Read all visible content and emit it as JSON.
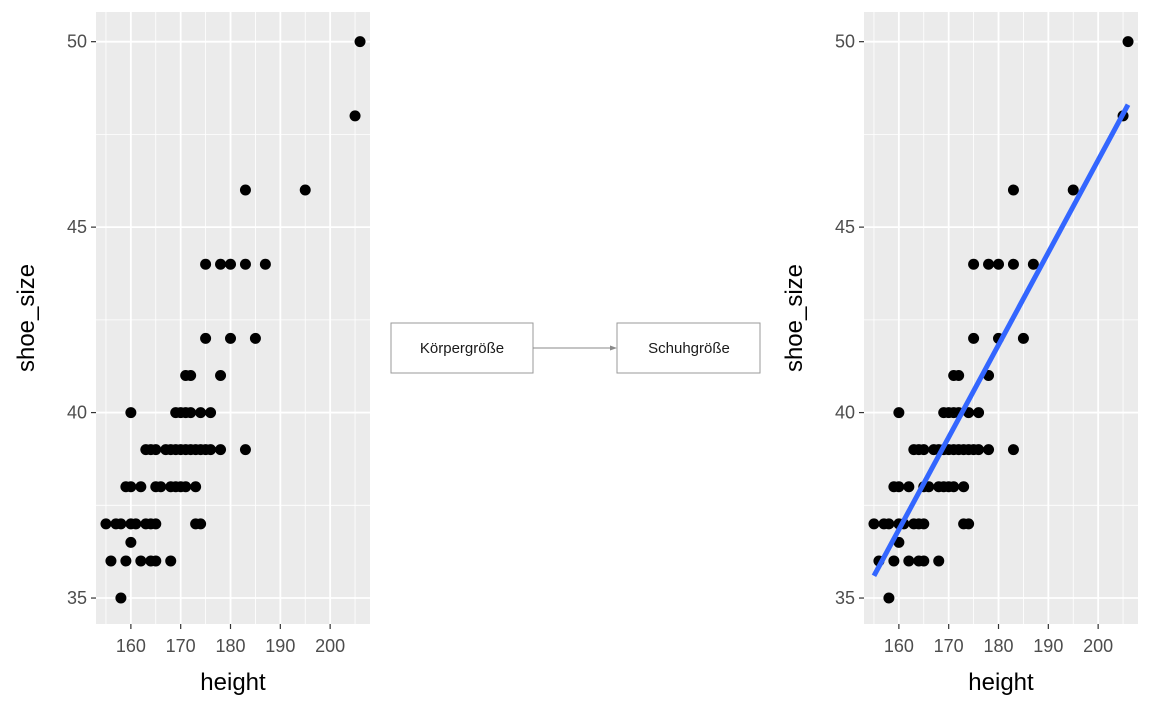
{
  "chart_data": [
    {
      "type": "scatter",
      "title": "",
      "xlabel": "height",
      "ylabel": "shoe_size",
      "xlim": [
        153,
        208
      ],
      "ylim": [
        34.3,
        50.8
      ],
      "xticks": [
        160,
        170,
        180,
        190,
        200
      ],
      "yticks": [
        35,
        40,
        45,
        50
      ],
      "grid": true,
      "points": [
        [
          155,
          37
        ],
        [
          156,
          36
        ],
        [
          157,
          37
        ],
        [
          158,
          37
        ],
        [
          158,
          35
        ],
        [
          159,
          38
        ],
        [
          159,
          36
        ],
        [
          160,
          38
        ],
        [
          160,
          37
        ],
        [
          160,
          36.5
        ],
        [
          160,
          40
        ],
        [
          161,
          37
        ],
        [
          162,
          38
        ],
        [
          162,
          36
        ],
        [
          163,
          39
        ],
        [
          163,
          37
        ],
        [
          164,
          39
        ],
        [
          164,
          37
        ],
        [
          164,
          36
        ],
        [
          165,
          39
        ],
        [
          165,
          38
        ],
        [
          165,
          37
        ],
        [
          165,
          36
        ],
        [
          166,
          38
        ],
        [
          167,
          39
        ],
        [
          168,
          39
        ],
        [
          168,
          38
        ],
        [
          168,
          36
        ],
        [
          169,
          40
        ],
        [
          169,
          39
        ],
        [
          169,
          38
        ],
        [
          170,
          40
        ],
        [
          170,
          39
        ],
        [
          170,
          38
        ],
        [
          171,
          41
        ],
        [
          171,
          40
        ],
        [
          171,
          39
        ],
        [
          171,
          38
        ],
        [
          172,
          41
        ],
        [
          172,
          40
        ],
        [
          172,
          39
        ],
        [
          173,
          39
        ],
        [
          173,
          38
        ],
        [
          173,
          37
        ],
        [
          174,
          40
        ],
        [
          174,
          39
        ],
        [
          174,
          37
        ],
        [
          175,
          44
        ],
        [
          175,
          42
        ],
        [
          175,
          39
        ],
        [
          176,
          40
        ],
        [
          176,
          39
        ],
        [
          178,
          44
        ],
        [
          178,
          41
        ],
        [
          178,
          39
        ],
        [
          180,
          44
        ],
        [
          180,
          42
        ],
        [
          183,
          46
        ],
        [
          183,
          44
        ],
        [
          183,
          39
        ],
        [
          185,
          42
        ],
        [
          187,
          44
        ],
        [
          195,
          46
        ],
        [
          205,
          48
        ],
        [
          206,
          50
        ]
      ]
    },
    {
      "type": "diagram",
      "nodes": [
        "Körpergröße",
        "Schuhgröße"
      ],
      "edges": [
        [
          "Körpergröße",
          "Schuhgröße"
        ]
      ]
    },
    {
      "type": "scatter",
      "title": "",
      "xlabel": "height",
      "ylabel": "shoe_size",
      "xlim": [
        153,
        208
      ],
      "ylim": [
        34.3,
        50.8
      ],
      "xticks": [
        160,
        170,
        180,
        190,
        200
      ],
      "yticks": [
        35,
        40,
        45,
        50
      ],
      "grid": true,
      "points": [
        [
          155,
          37
        ],
        [
          156,
          36
        ],
        [
          157,
          37
        ],
        [
          158,
          37
        ],
        [
          158,
          35
        ],
        [
          159,
          38
        ],
        [
          159,
          36
        ],
        [
          160,
          38
        ],
        [
          160,
          37
        ],
        [
          160,
          36.5
        ],
        [
          160,
          40
        ],
        [
          161,
          37
        ],
        [
          162,
          38
        ],
        [
          162,
          36
        ],
        [
          163,
          39
        ],
        [
          163,
          37
        ],
        [
          164,
          39
        ],
        [
          164,
          37
        ],
        [
          164,
          36
        ],
        [
          165,
          39
        ],
        [
          165,
          38
        ],
        [
          165,
          37
        ],
        [
          165,
          36
        ],
        [
          166,
          38
        ],
        [
          167,
          39
        ],
        [
          168,
          39
        ],
        [
          168,
          38
        ],
        [
          168,
          36
        ],
        [
          169,
          40
        ],
        [
          169,
          39
        ],
        [
          169,
          38
        ],
        [
          170,
          40
        ],
        [
          170,
          39
        ],
        [
          170,
          38
        ],
        [
          171,
          41
        ],
        [
          171,
          40
        ],
        [
          171,
          39
        ],
        [
          171,
          38
        ],
        [
          172,
          41
        ],
        [
          172,
          40
        ],
        [
          172,
          39
        ],
        [
          173,
          39
        ],
        [
          173,
          38
        ],
        [
          173,
          37
        ],
        [
          174,
          40
        ],
        [
          174,
          39
        ],
        [
          174,
          37
        ],
        [
          175,
          44
        ],
        [
          175,
          42
        ],
        [
          175,
          39
        ],
        [
          176,
          40
        ],
        [
          176,
          39
        ],
        [
          178,
          44
        ],
        [
          178,
          41
        ],
        [
          178,
          39
        ],
        [
          180,
          44
        ],
        [
          180,
          42
        ],
        [
          183,
          46
        ],
        [
          183,
          44
        ],
        [
          183,
          39
        ],
        [
          185,
          42
        ],
        [
          187,
          44
        ],
        [
          195,
          46
        ],
        [
          205,
          48
        ],
        [
          206,
          50
        ]
      ],
      "fit_line": {
        "x": [
          155,
          206
        ],
        "y": [
          35.6,
          48.3
        ],
        "color": "#3366ff"
      }
    }
  ],
  "colors": {
    "panel_bg": "#ebebeb",
    "grid": "#ffffff",
    "point": "#000000",
    "fit_line": "#3366ff"
  }
}
